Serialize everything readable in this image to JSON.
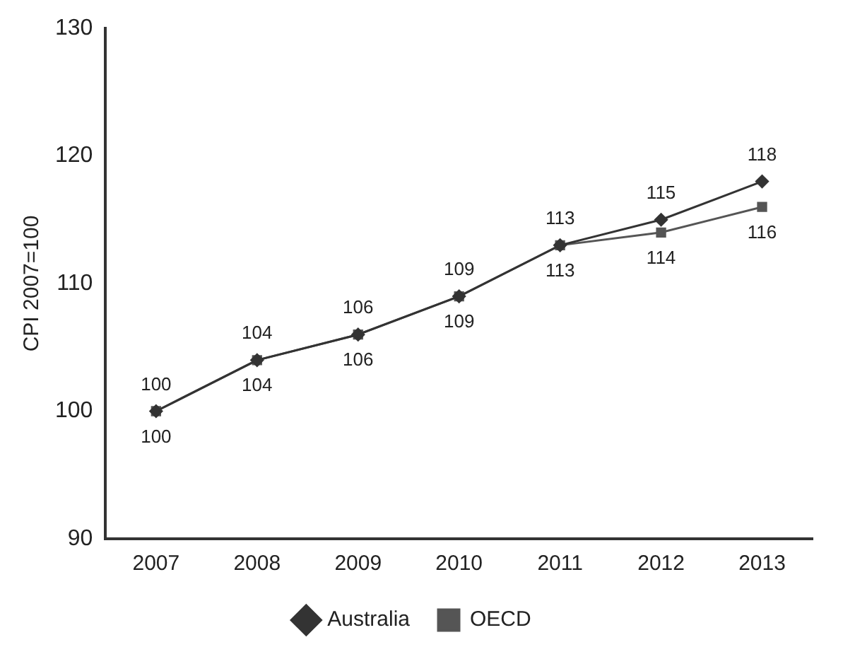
{
  "chart_data": {
    "type": "line",
    "ylabel": "CPI 2007=100",
    "categories": [
      "2007",
      "2008",
      "2009",
      "2010",
      "2011",
      "2012",
      "2013"
    ],
    "series": [
      {
        "name": "Australia",
        "color": "#333333",
        "marker": "diamond",
        "values": [
          100,
          104,
          106,
          109,
          113,
          115,
          118
        ]
      },
      {
        "name": "OECD",
        "color": "#555555",
        "marker": "square",
        "values": [
          100,
          104,
          106,
          109,
          113,
          114,
          116
        ]
      }
    ],
    "ylim": [
      90,
      130
    ],
    "yticks": [
      90,
      100,
      110,
      120,
      130
    ],
    "grid": false,
    "legend": "bottom",
    "data_labels": true
  }
}
